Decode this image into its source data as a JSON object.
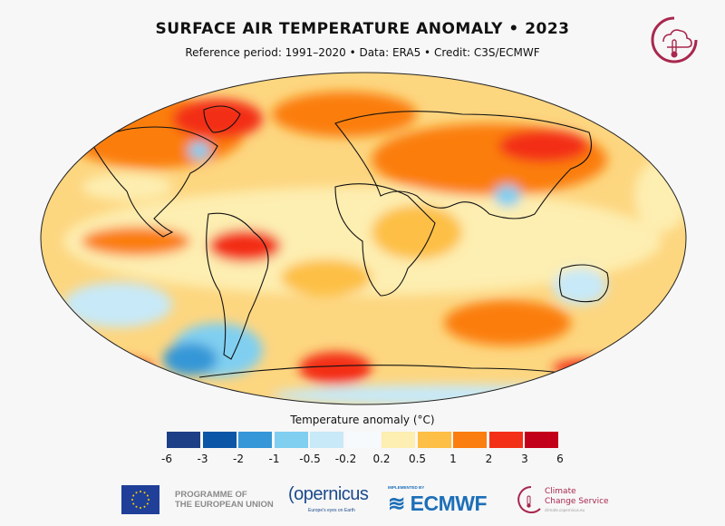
{
  "header": {
    "title": "SURFACE AIR TEMPERATURE ANOMALY • 2023",
    "subtitle": "Reference period: 1991–2020 • Data: ERA5 • Credit: C3S/ECMWF"
  },
  "map": {
    "projection": "Robinson",
    "variable": "surface-air-temperature-anomaly"
  },
  "legend": {
    "title": "Temperature anomaly (°C)",
    "ticks": [
      "-6",
      "-3",
      "-2",
      "-1",
      "-0.5",
      "-0.2",
      "0.2",
      "0.5",
      "1",
      "2",
      "3",
      "6"
    ],
    "colors": [
      "#1d3f86",
      "#0b56a6",
      "#3597d7",
      "#80cff1",
      "#c7e9f8",
      "#f7fafc",
      "#fdeeb1",
      "#fdbf45",
      "#fb7e10",
      "#f32f18",
      "#c30019"
    ]
  },
  "footer": {
    "eu_line1": "PROGRAMME OF",
    "eu_line2": "THE EUROPEAN UNION",
    "copernicus": "opernicus",
    "copernicus_tagline": "Europe's eyes on Earth",
    "ecmwf_implemented": "IMPLEMENTED BY",
    "ecmwf": "ECMWF",
    "ccs_line1": "Climate",
    "ccs_line2": "Change Service",
    "ccs_url": "climate.copernicus.eu"
  }
}
